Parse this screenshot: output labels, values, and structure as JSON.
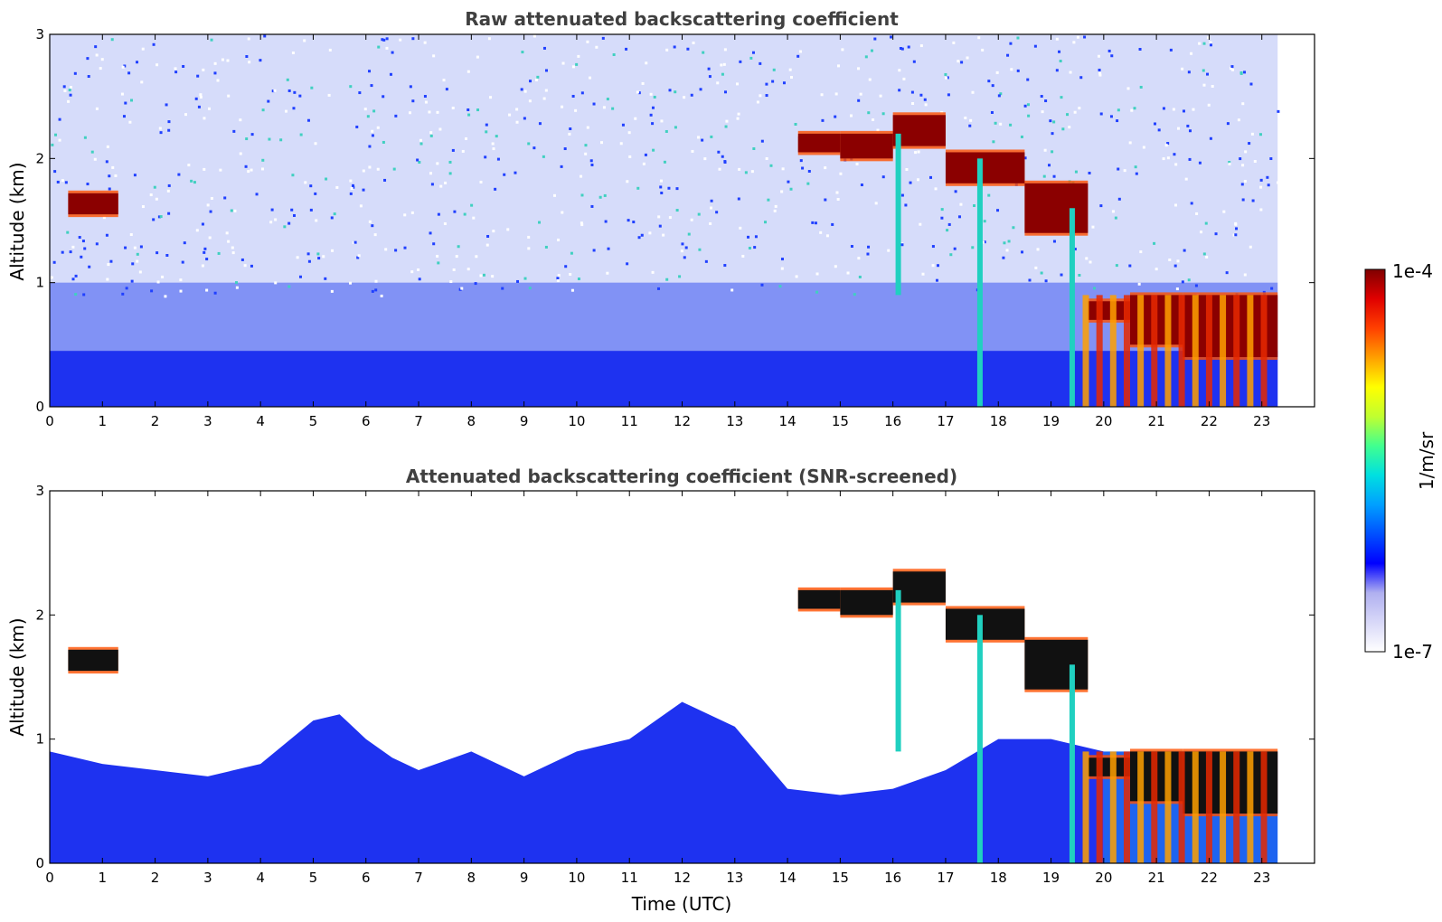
{
  "colors": {
    "colormap": [
      "#ffffff",
      "#d8d8f8",
      "#b0b0f0",
      "#0000ff",
      "#0050ff",
      "#00a0ff",
      "#00e0e0",
      "#40ff90",
      "#c0ff30",
      "#ffff00",
      "#ffa000",
      "#ff4000",
      "#e00000",
      "#800000"
    ],
    "low_backscatter": "#1e32f0",
    "high_backscatter": "#8b0000",
    "blank": "#ffffff"
  },
  "chart_data": [
    {
      "type": "heatmap",
      "title": "Raw attenuated backscattering coefficient",
      "xlabel": "",
      "ylabel": "Altitude (km)",
      "xlim": [
        0,
        24
      ],
      "ylim": [
        0,
        3
      ],
      "x_ticks": [
        "0",
        "1",
        "2",
        "3",
        "4",
        "5",
        "6",
        "7",
        "8",
        "9",
        "10",
        "11",
        "12",
        "13",
        "14",
        "15",
        "16",
        "17",
        "18",
        "19",
        "20",
        "21",
        "22",
        "23"
      ],
      "y_ticks": [
        "0",
        "1",
        "2",
        "3"
      ],
      "data_extent_hours": [
        0,
        23.3
      ],
      "cloud_layers": [
        {
          "t": [
            0.35,
            1.3
          ],
          "alt": [
            1.55,
            1.72
          ]
        },
        {
          "t": [
            14.2,
            15.0
          ],
          "alt": [
            2.05,
            2.2
          ]
        },
        {
          "t": [
            15.0,
            16.0
          ],
          "alt": [
            2.0,
            2.2
          ]
        },
        {
          "t": [
            16.0,
            17.0
          ],
          "alt": [
            2.1,
            2.35
          ]
        },
        {
          "t": [
            17.0,
            18.5
          ],
          "alt": [
            1.8,
            2.05
          ]
        },
        {
          "t": [
            18.5,
            19.7
          ],
          "alt": [
            1.4,
            1.8
          ]
        },
        {
          "t": [
            19.7,
            20.5
          ],
          "alt": [
            0.7,
            0.85
          ]
        },
        {
          "t": [
            20.5,
            21.5
          ],
          "alt": [
            0.5,
            0.9
          ]
        },
        {
          "t": [
            21.5,
            23.3
          ],
          "alt": [
            0.4,
            0.9
          ]
        }
      ]
    },
    {
      "type": "heatmap",
      "title": "Attenuated backscattering coefficient (SNR-screened)",
      "xlabel": "Time (UTC)",
      "ylabel": "Altitude (km)",
      "xlim": [
        0,
        24
      ],
      "ylim": [
        0,
        3
      ],
      "x_ticks": [
        "0",
        "1",
        "2",
        "3",
        "4",
        "5",
        "6",
        "7",
        "8",
        "9",
        "10",
        "11",
        "12",
        "13",
        "14",
        "15",
        "16",
        "17",
        "18",
        "19",
        "20",
        "21",
        "22",
        "23"
      ],
      "y_ticks": [
        "0",
        "1",
        "2",
        "3"
      ],
      "data_extent_hours": [
        0,
        23.3
      ],
      "boundary_layer_top": [
        [
          0,
          0.9
        ],
        [
          1.0,
          0.8
        ],
        [
          2.0,
          0.75
        ],
        [
          3.0,
          0.7
        ],
        [
          4.0,
          0.8
        ],
        [
          5.0,
          1.15
        ],
        [
          5.5,
          1.2
        ],
        [
          6.0,
          1.0
        ],
        [
          6.5,
          0.85
        ],
        [
          7.0,
          0.75
        ],
        [
          8.0,
          0.9
        ],
        [
          9.0,
          0.7
        ],
        [
          10.0,
          0.9
        ],
        [
          11.0,
          1.0
        ],
        [
          12.0,
          1.3
        ],
        [
          13.0,
          1.1
        ],
        [
          14.0,
          0.6
        ],
        [
          15.0,
          0.55
        ],
        [
          16.0,
          0.6
        ],
        [
          17.0,
          0.75
        ],
        [
          18.0,
          1.0
        ],
        [
          19.0,
          1.0
        ],
        [
          20.0,
          0.9
        ]
      ]
    }
  ],
  "colorbar": {
    "label": "1/m/sr",
    "max_label": "1e-4",
    "min_label": "1e-7"
  }
}
